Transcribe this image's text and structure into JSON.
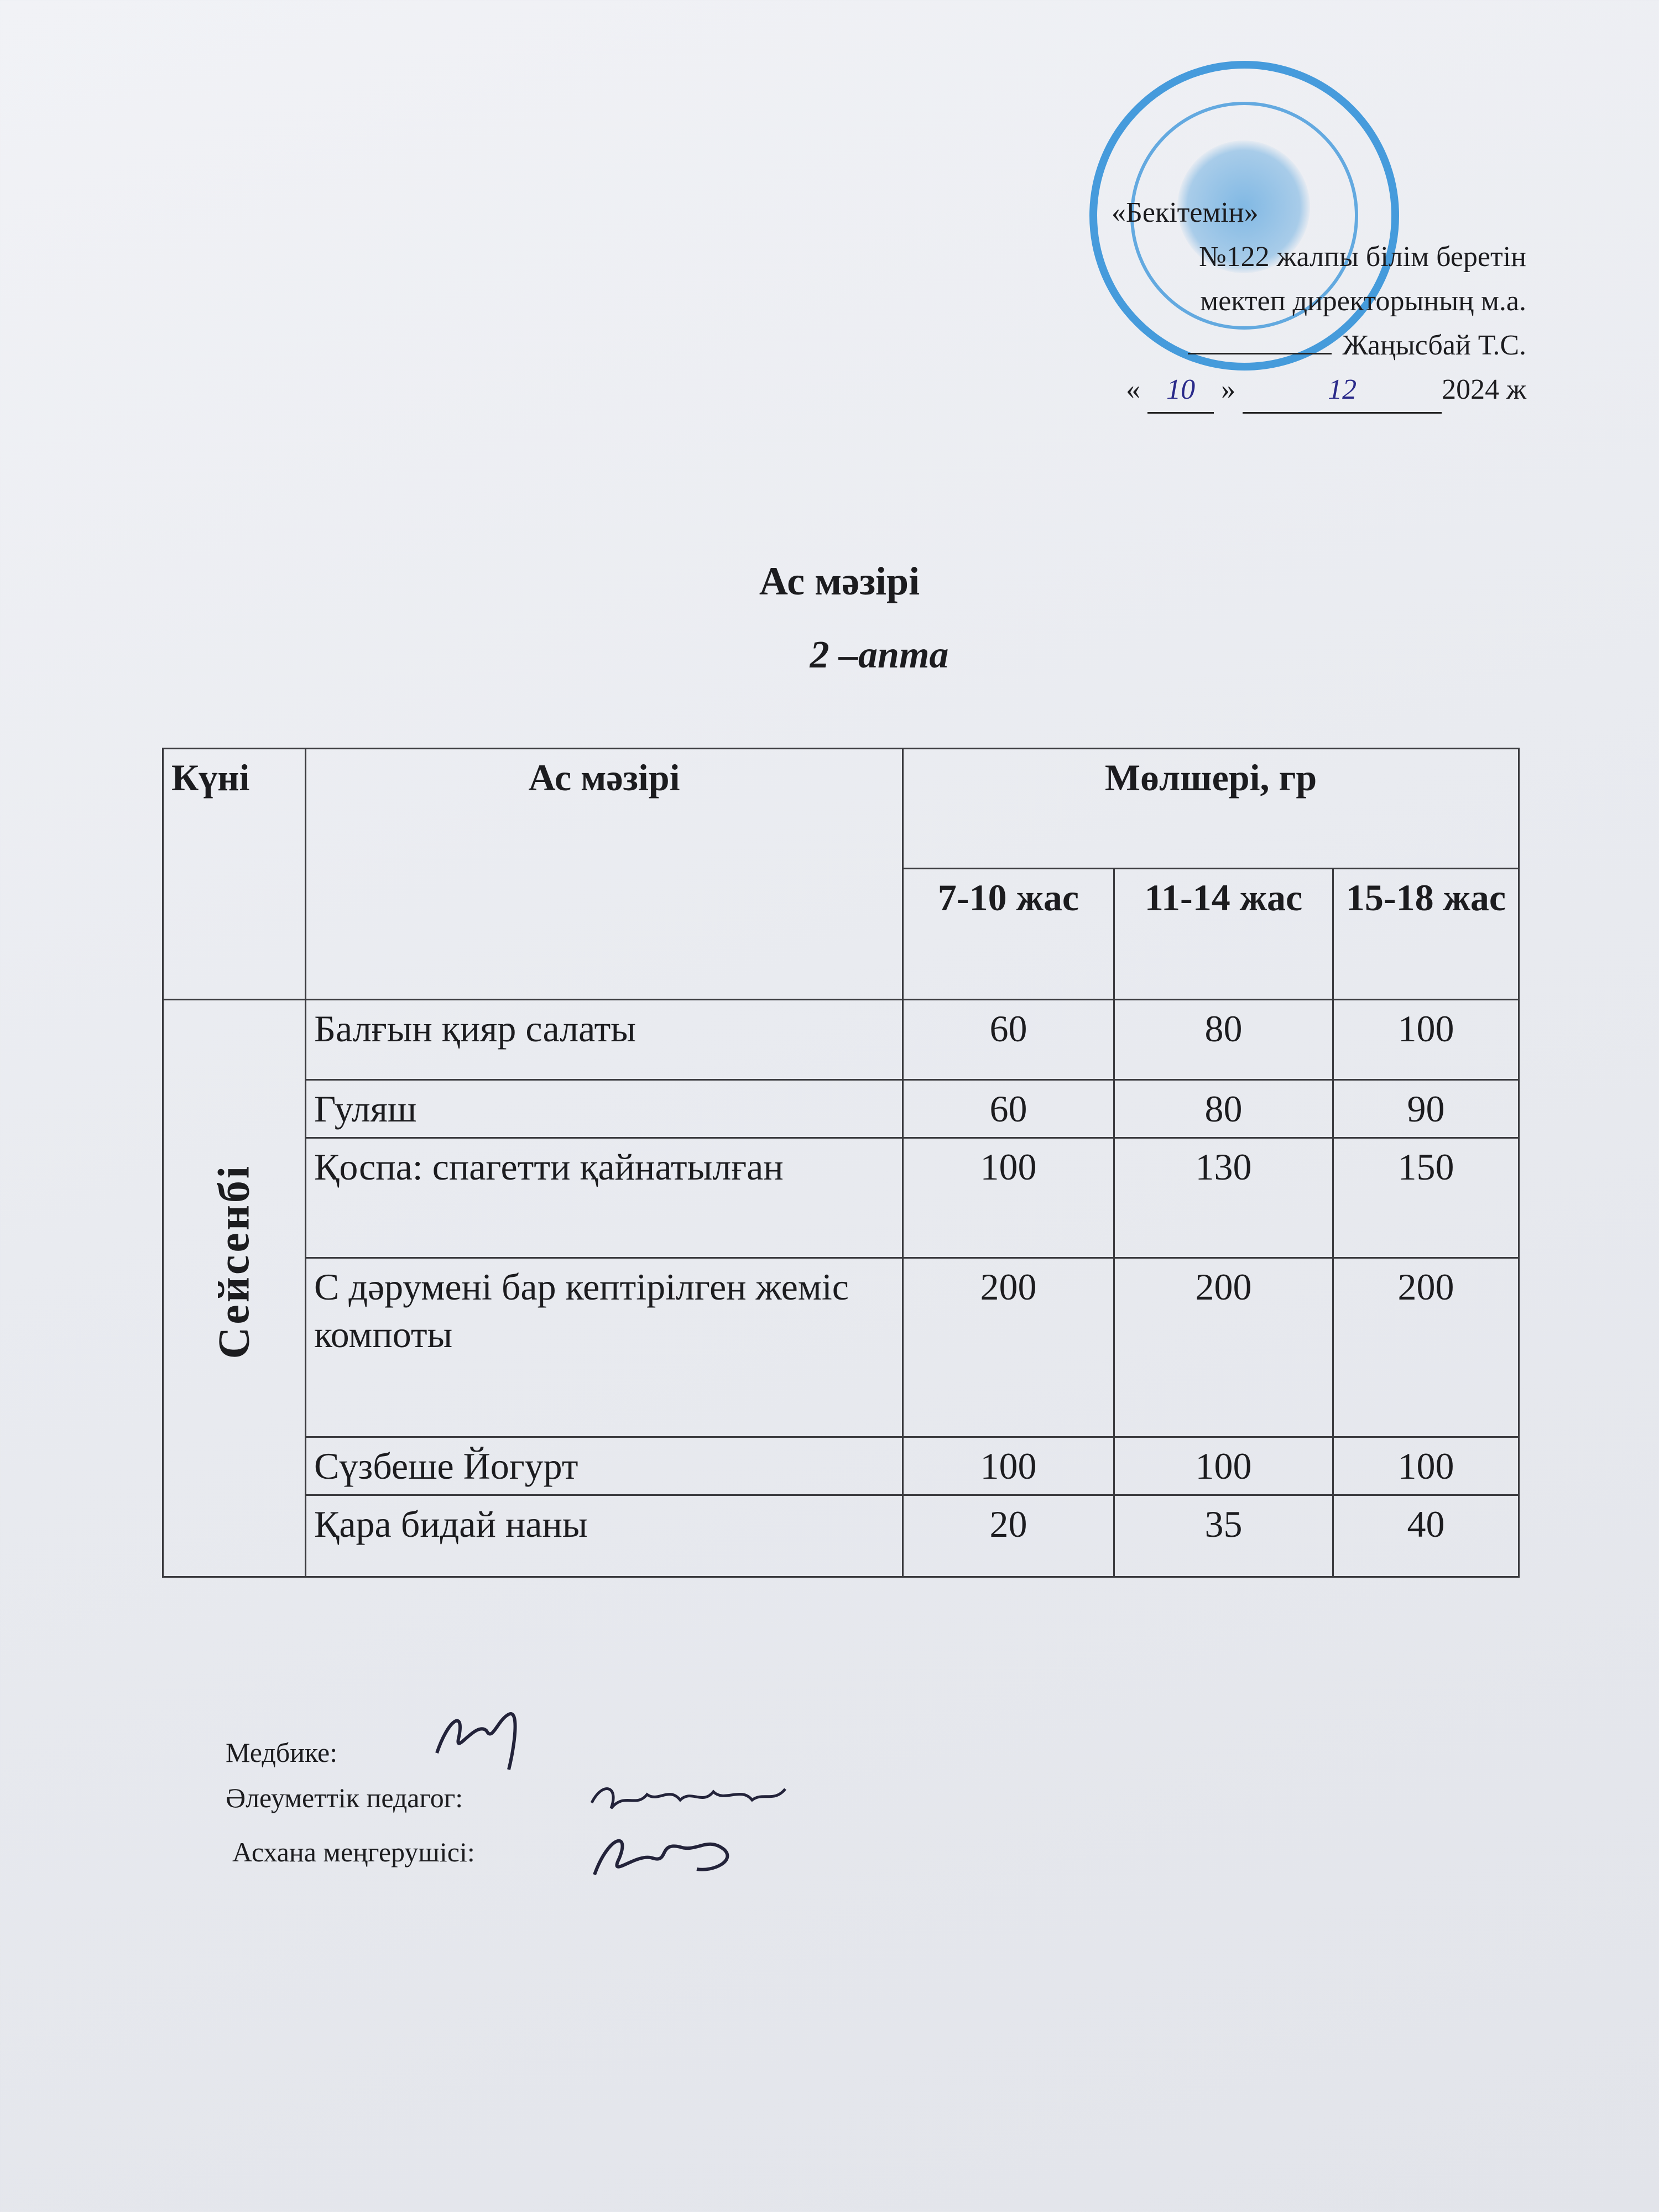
{
  "approval": {
    "line1": "«Бекітемін»",
    "line2": "№122 жалпы білім беретін",
    "line3": "мектеп   директорының м.а.",
    "line4": "Жаңысбай Т.С.",
    "date_open": "«",
    "date_day": "10",
    "date_close": "»",
    "date_month": "12",
    "date_year": "2024 ж",
    "stamp_color": "#288cd7"
  },
  "title": "Ас мәзірі",
  "subtitle": "2 –апта",
  "table": {
    "headers": {
      "day": "Күні",
      "menu": "Ас мәзірі",
      "amount": "Мөлшері, гр",
      "age_groups": [
        "7-10 жас",
        "11-14 жас",
        "15-18 жас"
      ]
    },
    "day": "Сейсенбі",
    "rows": [
      {
        "dish": "Балғын қияр салаты",
        "values": [
          "60",
          "80",
          "100"
        ]
      },
      {
        "dish": "Гуляш",
        "values": [
          "60",
          "80",
          "90"
        ]
      },
      {
        "dish": "Қоспа: спагетти қайнатылған",
        "values": [
          "100",
          "130",
          "150"
        ]
      },
      {
        "dish": "С дәрумені бар кептірілген жеміс компоты",
        "values": [
          "200",
          "200",
          "200"
        ]
      },
      {
        "dish": "Сүзбеше Йогурт",
        "values": [
          "100",
          "100",
          "100"
        ]
      },
      {
        "dish": "Қара бидай наны",
        "values": [
          "20",
          "35",
          "40"
        ]
      }
    ]
  },
  "signatures": {
    "nurse": "Медбике:",
    "social_pedagogue": "Әлеуметтік педагог:",
    "canteen_head": "Асхана меңгерушісі:"
  }
}
